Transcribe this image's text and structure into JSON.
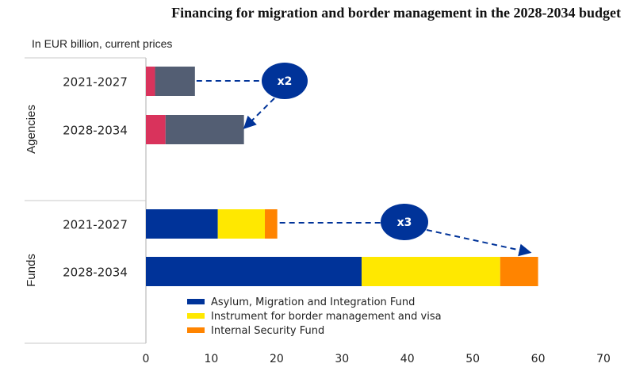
{
  "chart_data": {
    "type": "bar",
    "orientation": "horizontal-stacked",
    "title": "Financing for migration and border management in the 2028-2034 budget",
    "subtitle": "In EUR billion,  current prices",
    "xlim": [
      0,
      70
    ],
    "xticks": [
      "0",
      "10",
      "20",
      "30",
      "40",
      "50",
      "60",
      "70"
    ],
    "groups": [
      {
        "name": "Agencies",
        "rows": [
          {
            "label": "2021-2027",
            "segments": [
              {
                "value": 1.4,
                "color": "#d9335c"
              },
              {
                "value": 6.1,
                "color": "#535e73"
              }
            ]
          },
          {
            "label": "2028-2034",
            "segments": [
              {
                "value": 3.0,
                "color": "#d9335c"
              },
              {
                "value": 12.0,
                "color": "#535e73"
              }
            ]
          }
        ],
        "annotation": {
          "text": "x2",
          "color": "#003399"
        }
      },
      {
        "name": "Funds",
        "rows": [
          {
            "label": "2021-2027",
            "segments": [
              {
                "value": 11.0,
                "color": "#003399"
              },
              {
                "value": 7.2,
                "color": "#ffe800"
              },
              {
                "value": 1.9,
                "color": "#ff8400"
              }
            ]
          },
          {
            "label": "2028-2034",
            "segments": [
              {
                "value": 33.0,
                "color": "#003399"
              },
              {
                "value": 21.2,
                "color": "#ffe800"
              },
              {
                "value": 5.8,
                "color": "#ff8400"
              }
            ]
          }
        ],
        "annotation": {
          "text": "x3",
          "color": "#003399"
        }
      }
    ],
    "legend": [
      {
        "label": "Asylum, Migration and Integration Fund",
        "color": "#003399"
      },
      {
        "label": "Instrument for border management and visa",
        "color": "#ffe800"
      },
      {
        "label": "Internal Security Fund",
        "color": "#ff8400"
      }
    ]
  }
}
